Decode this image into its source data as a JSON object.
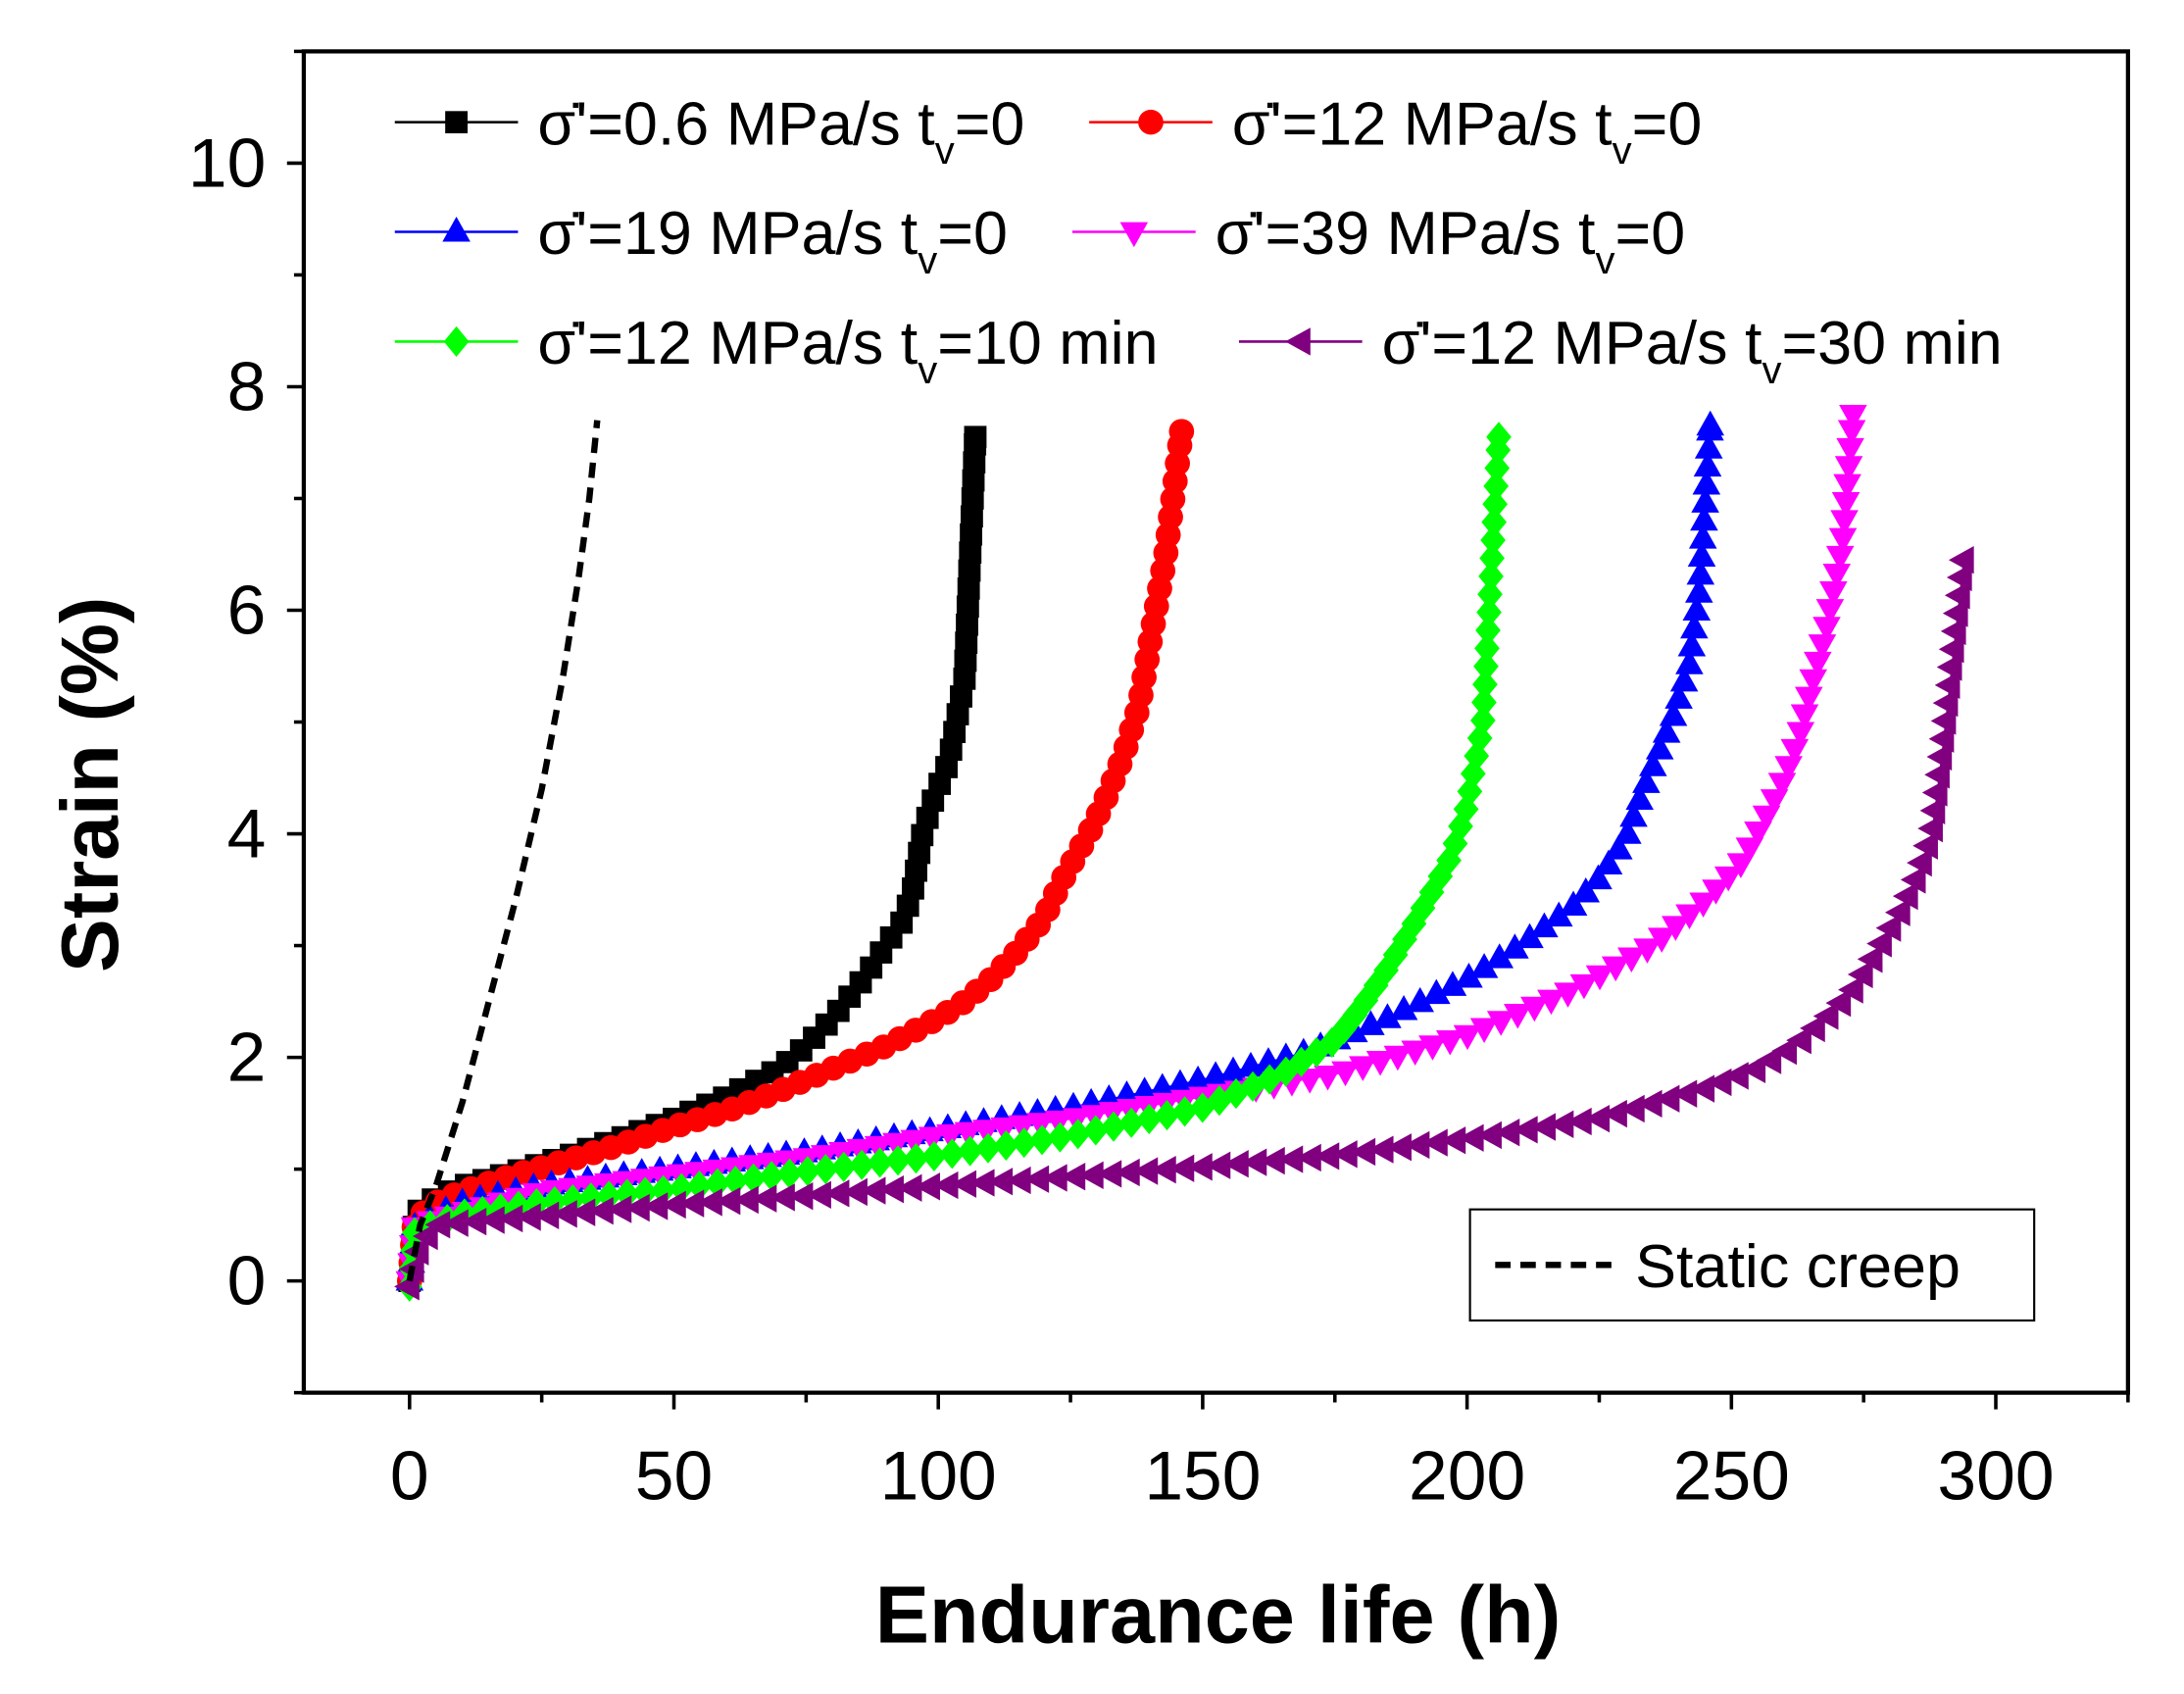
{
  "chart_data": {
    "type": "line",
    "title": "",
    "xlabel": "Endurance life (h)",
    "ylabel": "Strain (%)",
    "xlim": [
      -20,
      325
    ],
    "ylim": [
      -1,
      11
    ],
    "xticks": [
      0,
      50,
      100,
      150,
      200,
      250,
      300
    ],
    "xtick_labels": [
      "0",
      "50",
      "100",
      "150",
      "200",
      "250",
      "300"
    ],
    "yticks": [
      0,
      2,
      4,
      6,
      8,
      10
    ],
    "ytick_labels": [
      "0",
      "2",
      "4",
      "6",
      "8",
      "10"
    ],
    "grid": false,
    "legend_placement": "top",
    "series": [
      {
        "name": "σ̇'=0.6 MPa/s tv=0",
        "label_main": "σ̇'=0.6 MPa/s t",
        "label_sub": "v",
        "label_tail": "=0",
        "color": "#000000",
        "marker": "square",
        "points": [
          [
            0,
            0
          ],
          [
            1,
            0.6
          ],
          [
            5,
            0.75
          ],
          [
            10,
            0.85
          ],
          [
            20,
            0.98
          ],
          [
            30,
            1.12
          ],
          [
            40,
            1.28
          ],
          [
            50,
            1.45
          ],
          [
            60,
            1.65
          ],
          [
            70,
            1.9
          ],
          [
            75,
            2.1
          ],
          [
            80,
            2.35
          ],
          [
            85,
            2.65
          ],
          [
            88,
            2.85
          ],
          [
            90,
            3.0
          ],
          [
            93,
            3.2
          ],
          [
            95,
            3.45
          ],
          [
            97,
            4.0
          ],
          [
            99,
            4.3
          ],
          [
            102,
            4.65
          ],
          [
            105,
            5.4
          ],
          [
            107,
            7.55
          ]
        ]
      },
      {
        "name": "σ̇'=12 MPa/s tv=0",
        "label_main": "σ̇'=12 MPa/s t",
        "label_sub": "v",
        "label_tail": "=0",
        "color": "#ff0000",
        "marker": "circle",
        "points": [
          [
            0,
            0
          ],
          [
            1,
            0.55
          ],
          [
            5,
            0.7
          ],
          [
            10,
            0.8
          ],
          [
            20,
            0.95
          ],
          [
            30,
            1.08
          ],
          [
            40,
            1.22
          ],
          [
            50,
            1.38
          ],
          [
            60,
            1.52
          ],
          [
            70,
            1.7
          ],
          [
            80,
            1.9
          ],
          [
            90,
            2.1
          ],
          [
            100,
            2.35
          ],
          [
            105,
            2.5
          ],
          [
            110,
            2.7
          ],
          [
            115,
            2.95
          ],
          [
            120,
            3.25
          ],
          [
            123,
            3.55
          ],
          [
            126,
            3.8
          ],
          [
            129,
            4.05
          ],
          [
            132,
            4.35
          ],
          [
            135,
            4.7
          ],
          [
            138,
            5.15
          ],
          [
            140,
            5.7
          ],
          [
            143,
            6.5
          ],
          [
            146,
            7.6
          ]
        ]
      },
      {
        "name": "σ̇'=19 MPa/s tv=0",
        "label_main": "σ̇'=19 MPa/s t",
        "label_sub": "v",
        "label_tail": "=0",
        "color": "#0000ff",
        "marker": "triangle-up",
        "points": [
          [
            0,
            0
          ],
          [
            1,
            0.5
          ],
          [
            10,
            0.7
          ],
          [
            25,
            0.85
          ],
          [
            50,
            1.0
          ],
          [
            75,
            1.15
          ],
          [
            100,
            1.35
          ],
          [
            125,
            1.55
          ],
          [
            150,
            1.8
          ],
          [
            170,
            2.05
          ],
          [
            185,
            2.35
          ],
          [
            200,
            2.7
          ],
          [
            210,
            3.0
          ],
          [
            220,
            3.35
          ],
          [
            225,
            3.6
          ],
          [
            230,
            3.95
          ],
          [
            233,
            4.35
          ],
          [
            236,
            4.7
          ],
          [
            239,
            5.05
          ],
          [
            242,
            5.5
          ],
          [
            244,
            6.2
          ],
          [
            246,
            7.65
          ]
        ]
      },
      {
        "name": "σ̇'=39 MPa/s tv=0",
        "label_main": "σ̇'=39 MPa/s t",
        "label_sub": "v",
        "label_tail": "=0",
        "color": "#ff00ff",
        "marker": "triangle-down",
        "points": [
          [
            0,
            0
          ],
          [
            1,
            0.5
          ],
          [
            25,
            0.8
          ],
          [
            50,
            0.95
          ],
          [
            75,
            1.1
          ],
          [
            100,
            1.3
          ],
          [
            125,
            1.45
          ],
          [
            150,
            1.65
          ],
          [
            175,
            1.85
          ],
          [
            200,
            2.2
          ],
          [
            220,
            2.6
          ],
          [
            235,
            3.0
          ],
          [
            245,
            3.4
          ],
          [
            252,
            3.75
          ],
          [
            257,
            4.2
          ],
          [
            260,
            4.5
          ],
          [
            263,
            4.9
          ],
          [
            265,
            5.3
          ],
          [
            268,
            5.85
          ],
          [
            271,
            6.6
          ],
          [
            273,
            7.75
          ]
        ]
      },
      {
        "name": "σ̇'=12 MPa/s tv=10 min",
        "label_main": "σ̇'=12 MPa/s t",
        "label_sub": "v",
        "label_tail": "=10 min",
        "color": "#00ff00",
        "marker": "diamond",
        "points": [
          [
            0,
            -0.05
          ],
          [
            1,
            0.45
          ],
          [
            10,
            0.6
          ],
          [
            25,
            0.7
          ],
          [
            50,
            0.82
          ],
          [
            75,
            0.98
          ],
          [
            100,
            1.12
          ],
          [
            125,
            1.3
          ],
          [
            150,
            1.55
          ],
          [
            165,
            1.85
          ],
          [
            175,
            2.15
          ],
          [
            180,
            2.45
          ],
          [
            185,
            2.8
          ],
          [
            190,
            3.2
          ],
          [
            193,
            3.45
          ],
          [
            197,
            3.8
          ],
          [
            200,
            4.25
          ],
          [
            203,
            5.0
          ],
          [
            206,
            7.55
          ]
        ]
      },
      {
        "name": "σ̇'=12 MPa/s tv=30 min",
        "label_main": "σ̇'=12 MPa/s t",
        "label_sub": "v",
        "label_tail": "=30 min",
        "color": "#800080",
        "marker": "triangle-left",
        "points": [
          [
            0,
            -0.05
          ],
          [
            2,
            0.3
          ],
          [
            5,
            0.5
          ],
          [
            25,
            0.58
          ],
          [
            50,
            0.68
          ],
          [
            75,
            0.76
          ],
          [
            100,
            0.85
          ],
          [
            125,
            0.93
          ],
          [
            150,
            1.02
          ],
          [
            175,
            1.12
          ],
          [
            200,
            1.27
          ],
          [
            225,
            1.45
          ],
          [
            245,
            1.72
          ],
          [
            255,
            1.9
          ],
          [
            262,
            2.1
          ],
          [
            268,
            2.35
          ],
          [
            273,
            2.6
          ],
          [
            277,
            2.9
          ],
          [
            282,
            3.3
          ],
          [
            285,
            3.6
          ],
          [
            288,
            4.0
          ],
          [
            290,
            4.75
          ],
          [
            294,
            6.45
          ]
        ]
      },
      {
        "name": "Static creep",
        "label_main": "Static creep",
        "color": "#000000",
        "marker": "none",
        "line_style": "dashed",
        "points": [
          [
            0,
            0
          ],
          [
            2,
            0.5
          ],
          [
            5,
            0.85
          ],
          [
            10,
            1.6
          ],
          [
            15,
            2.5
          ],
          [
            20,
            3.4
          ],
          [
            25,
            4.4
          ],
          [
            29,
            5.4
          ],
          [
            32,
            6.3
          ],
          [
            34,
            7.0
          ],
          [
            35.5,
            7.7
          ]
        ]
      }
    ]
  }
}
